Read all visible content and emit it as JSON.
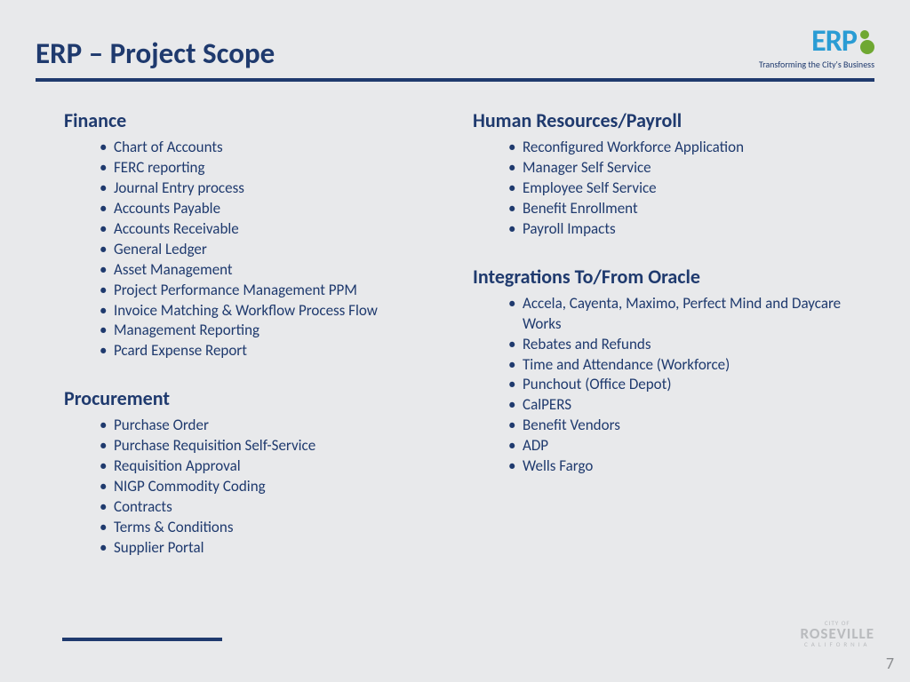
{
  "title": "ERP – Project Scope",
  "logo": {
    "text": "ERP",
    "tagline": "Transforming the City's Business",
    "text_color": "#2a9cd4",
    "gear_color": "#6fa832"
  },
  "accent_color": "#1f3a6e",
  "background_color": "#e8e9eb",
  "left_column": [
    {
      "heading": "Finance",
      "items": [
        "Chart of Accounts",
        "FERC reporting",
        "Journal Entry process",
        "Accounts Payable",
        "Accounts Receivable",
        "General Ledger",
        "Asset Management",
        "Project Performance Management PPM",
        "Invoice Matching & Workflow Process Flow",
        "Management Reporting",
        "Pcard Expense Report"
      ]
    },
    {
      "heading": "Procurement",
      "items": [
        "Purchase Order",
        "Purchase Requisition Self-Service",
        "Requisition Approval",
        "NIGP Commodity Coding",
        "Contracts",
        "Terms & Conditions",
        "Supplier Portal"
      ]
    }
  ],
  "right_column": [
    {
      "heading": "Human Resources/Payroll",
      "items": [
        "Reconfigured Workforce Application",
        "Manager Self Service",
        "Employee Self Service",
        "Benefit Enrollment",
        "Payroll Impacts"
      ]
    },
    {
      "heading": "Integrations To/From Oracle",
      "items": [
        "Accela, Cayenta, Maximo, Perfect Mind and Daycare Works",
        "Rebates and Refunds",
        "Time and Attendance (Workforce)",
        "Punchout (Office Depot)",
        "CalPERS",
        "Benefit Vendors",
        "ADP",
        "Wells Fargo"
      ]
    }
  ],
  "footer_logo": {
    "line1": "CITY OF",
    "line2": "ROSEVILLE",
    "line3": "CALIFORNIA"
  },
  "page_number": "7"
}
